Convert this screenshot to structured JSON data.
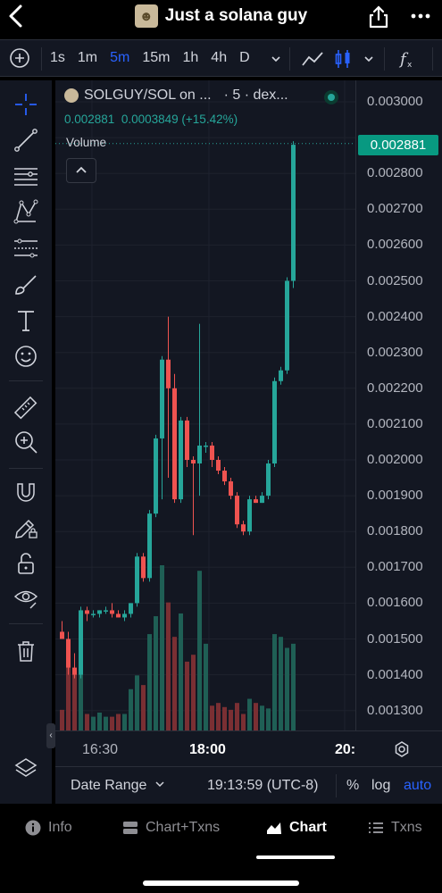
{
  "header": {
    "title": "Just a solana guy"
  },
  "toolbar": {
    "intervals": [
      "1s",
      "1m",
      "5m",
      "15m",
      "1h",
      "4h",
      "D"
    ],
    "active_interval": "5m"
  },
  "legend": {
    "symbol": "SOLGUY/SOL on ...",
    "interval_source": "· 5 · dex...",
    "last": "0.002881",
    "change": "0.0003849",
    "change_pct": "(+15.42%)",
    "volume_label": "Volume"
  },
  "price_axis": {
    "labels": [
      "0.003000",
      "0.002800",
      "0.002700",
      "0.002600",
      "0.002500",
      "0.002400",
      "0.002300",
      "0.002200",
      "0.002100",
      "0.002000",
      "0.001900",
      "0.001800",
      "0.001700",
      "0.001600",
      "0.001500",
      "0.001400",
      "0.001300"
    ],
    "last_price": "0.002881"
  },
  "time_axis": {
    "labels": [
      "16:30",
      "18:00",
      "20:"
    ]
  },
  "bottom_bar": {
    "date_range": "Date Range",
    "clock": "19:13:59 (UTC-8)",
    "percent": "%",
    "log": "log",
    "auto": "auto"
  },
  "tabs": [
    {
      "label": "Info",
      "icon": "info-icon"
    },
    {
      "label": "Chart+Txns",
      "icon": "split-icon"
    },
    {
      "label": "Chart",
      "icon": "chart-icon",
      "active": true
    },
    {
      "label": "Txns",
      "icon": "list-icon"
    }
  ],
  "colors": {
    "up": "#26a69a",
    "down": "#ef5350",
    "accent": "#2962ff",
    "panel": "#131722"
  },
  "chart_data": {
    "type": "candlestick",
    "y_range": [
      0.00125,
      0.00305
    ],
    "candles": [
      {
        "o": 0.00152,
        "h": 0.00155,
        "l": 0.0015,
        "c": 0.0015
      },
      {
        "o": 0.0015,
        "h": 0.00152,
        "l": 0.0014,
        "c": 0.00142
      },
      {
        "o": 0.00142,
        "h": 0.00146,
        "l": 0.00139,
        "c": 0.0014
      },
      {
        "o": 0.0014,
        "h": 0.00159,
        "l": 0.00139,
        "c": 0.00158
      },
      {
        "o": 0.00158,
        "h": 0.00159,
        "l": 0.00155,
        "c": 0.00157
      },
      {
        "o": 0.00157,
        "h": 0.00158,
        "l": 0.00156,
        "c": 0.00157
      },
      {
        "o": 0.00157,
        "h": 0.00158,
        "l": 0.00156,
        "c": 0.00158
      },
      {
        "o": 0.00158,
        "h": 0.00159,
        "l": 0.00157,
        "c": 0.00158
      },
      {
        "o": 0.00158,
        "h": 0.0016,
        "l": 0.00156,
        "c": 0.00157
      },
      {
        "o": 0.00157,
        "h": 0.00158,
        "l": 0.00156,
        "c": 0.00156
      },
      {
        "o": 0.00156,
        "h": 0.00158,
        "l": 0.00155,
        "c": 0.00157
      },
      {
        "o": 0.00157,
        "h": 0.0016,
        "l": 0.00156,
        "c": 0.0016
      },
      {
        "o": 0.0016,
        "h": 0.00174,
        "l": 0.00159,
        "c": 0.00173
      },
      {
        "o": 0.00173,
        "h": 0.00174,
        "l": 0.00166,
        "c": 0.00167
      },
      {
        "o": 0.00167,
        "h": 0.00186,
        "l": 0.00166,
        "c": 0.00185
      },
      {
        "o": 0.00185,
        "h": 0.00207,
        "l": 0.00184,
        "c": 0.00206
      },
      {
        "o": 0.00206,
        "h": 0.00229,
        "l": 0.00189,
        "c": 0.00228
      },
      {
        "o": 0.00228,
        "h": 0.0024,
        "l": 0.00195,
        "c": 0.0022
      },
      {
        "o": 0.0022,
        "h": 0.00224,
        "l": 0.00188,
        "c": 0.00189
      },
      {
        "o": 0.00189,
        "h": 0.00212,
        "l": 0.00188,
        "c": 0.00211
      },
      {
        "o": 0.00211,
        "h": 0.00212,
        "l": 0.00198,
        "c": 0.002
      },
      {
        "o": 0.002,
        "h": 0.00201,
        "l": 0.00179,
        "c": 0.00199
      },
      {
        "o": 0.00199,
        "h": 0.00238,
        "l": 0.0019,
        "c": 0.00204
      },
      {
        "o": 0.00204,
        "h": 0.00205,
        "l": 0.00202,
        "c": 0.00204
      },
      {
        "o": 0.00204,
        "h": 0.00205,
        "l": 0.00198,
        "c": 0.002
      },
      {
        "o": 0.002,
        "h": 0.00201,
        "l": 0.00196,
        "c": 0.00197
      },
      {
        "o": 0.00197,
        "h": 0.00198,
        "l": 0.00193,
        "c": 0.00194
      },
      {
        "o": 0.00194,
        "h": 0.00195,
        "l": 0.00189,
        "c": 0.0019
      },
      {
        "o": 0.0019,
        "h": 0.00191,
        "l": 0.00181,
        "c": 0.00182
      },
      {
        "o": 0.00182,
        "h": 0.00183,
        "l": 0.00179,
        "c": 0.0018
      },
      {
        "o": 0.0018,
        "h": 0.0019,
        "l": 0.00179,
        "c": 0.00189
      },
      {
        "o": 0.00189,
        "h": 0.0019,
        "l": 0.00188,
        "c": 0.00188
      },
      {
        "o": 0.00188,
        "h": 0.00191,
        "l": 0.00188,
        "c": 0.0019
      },
      {
        "o": 0.0019,
        "h": 0.002,
        "l": 0.00189,
        "c": 0.00199
      },
      {
        "o": 0.00199,
        "h": 0.00223,
        "l": 0.00198,
        "c": 0.00222
      },
      {
        "o": 0.00222,
        "h": 0.00226,
        "l": 0.00221,
        "c": 0.00225
      },
      {
        "o": 0.00225,
        "h": 0.00251,
        "l": 0.00224,
        "c": 0.0025
      },
      {
        "o": 0.0025,
        "h": 0.00289,
        "l": 0.00248,
        "c": 0.00288
      }
    ],
    "volumes": [
      0.15,
      0.55,
      0.45,
      0.85,
      0.12,
      0.1,
      0.13,
      0.1,
      0.1,
      0.12,
      0.12,
      0.3,
      0.4,
      0.33,
      0.7,
      0.83,
      1.2,
      0.93,
      0.68,
      0.85,
      0.5,
      0.55,
      1.16,
      0.63,
      0.18,
      0.2,
      0.17,
      0.15,
      0.2,
      0.12,
      0.23,
      0.2,
      0.18,
      0.16,
      0.7,
      0.68,
      0.6,
      0.63
    ]
  }
}
